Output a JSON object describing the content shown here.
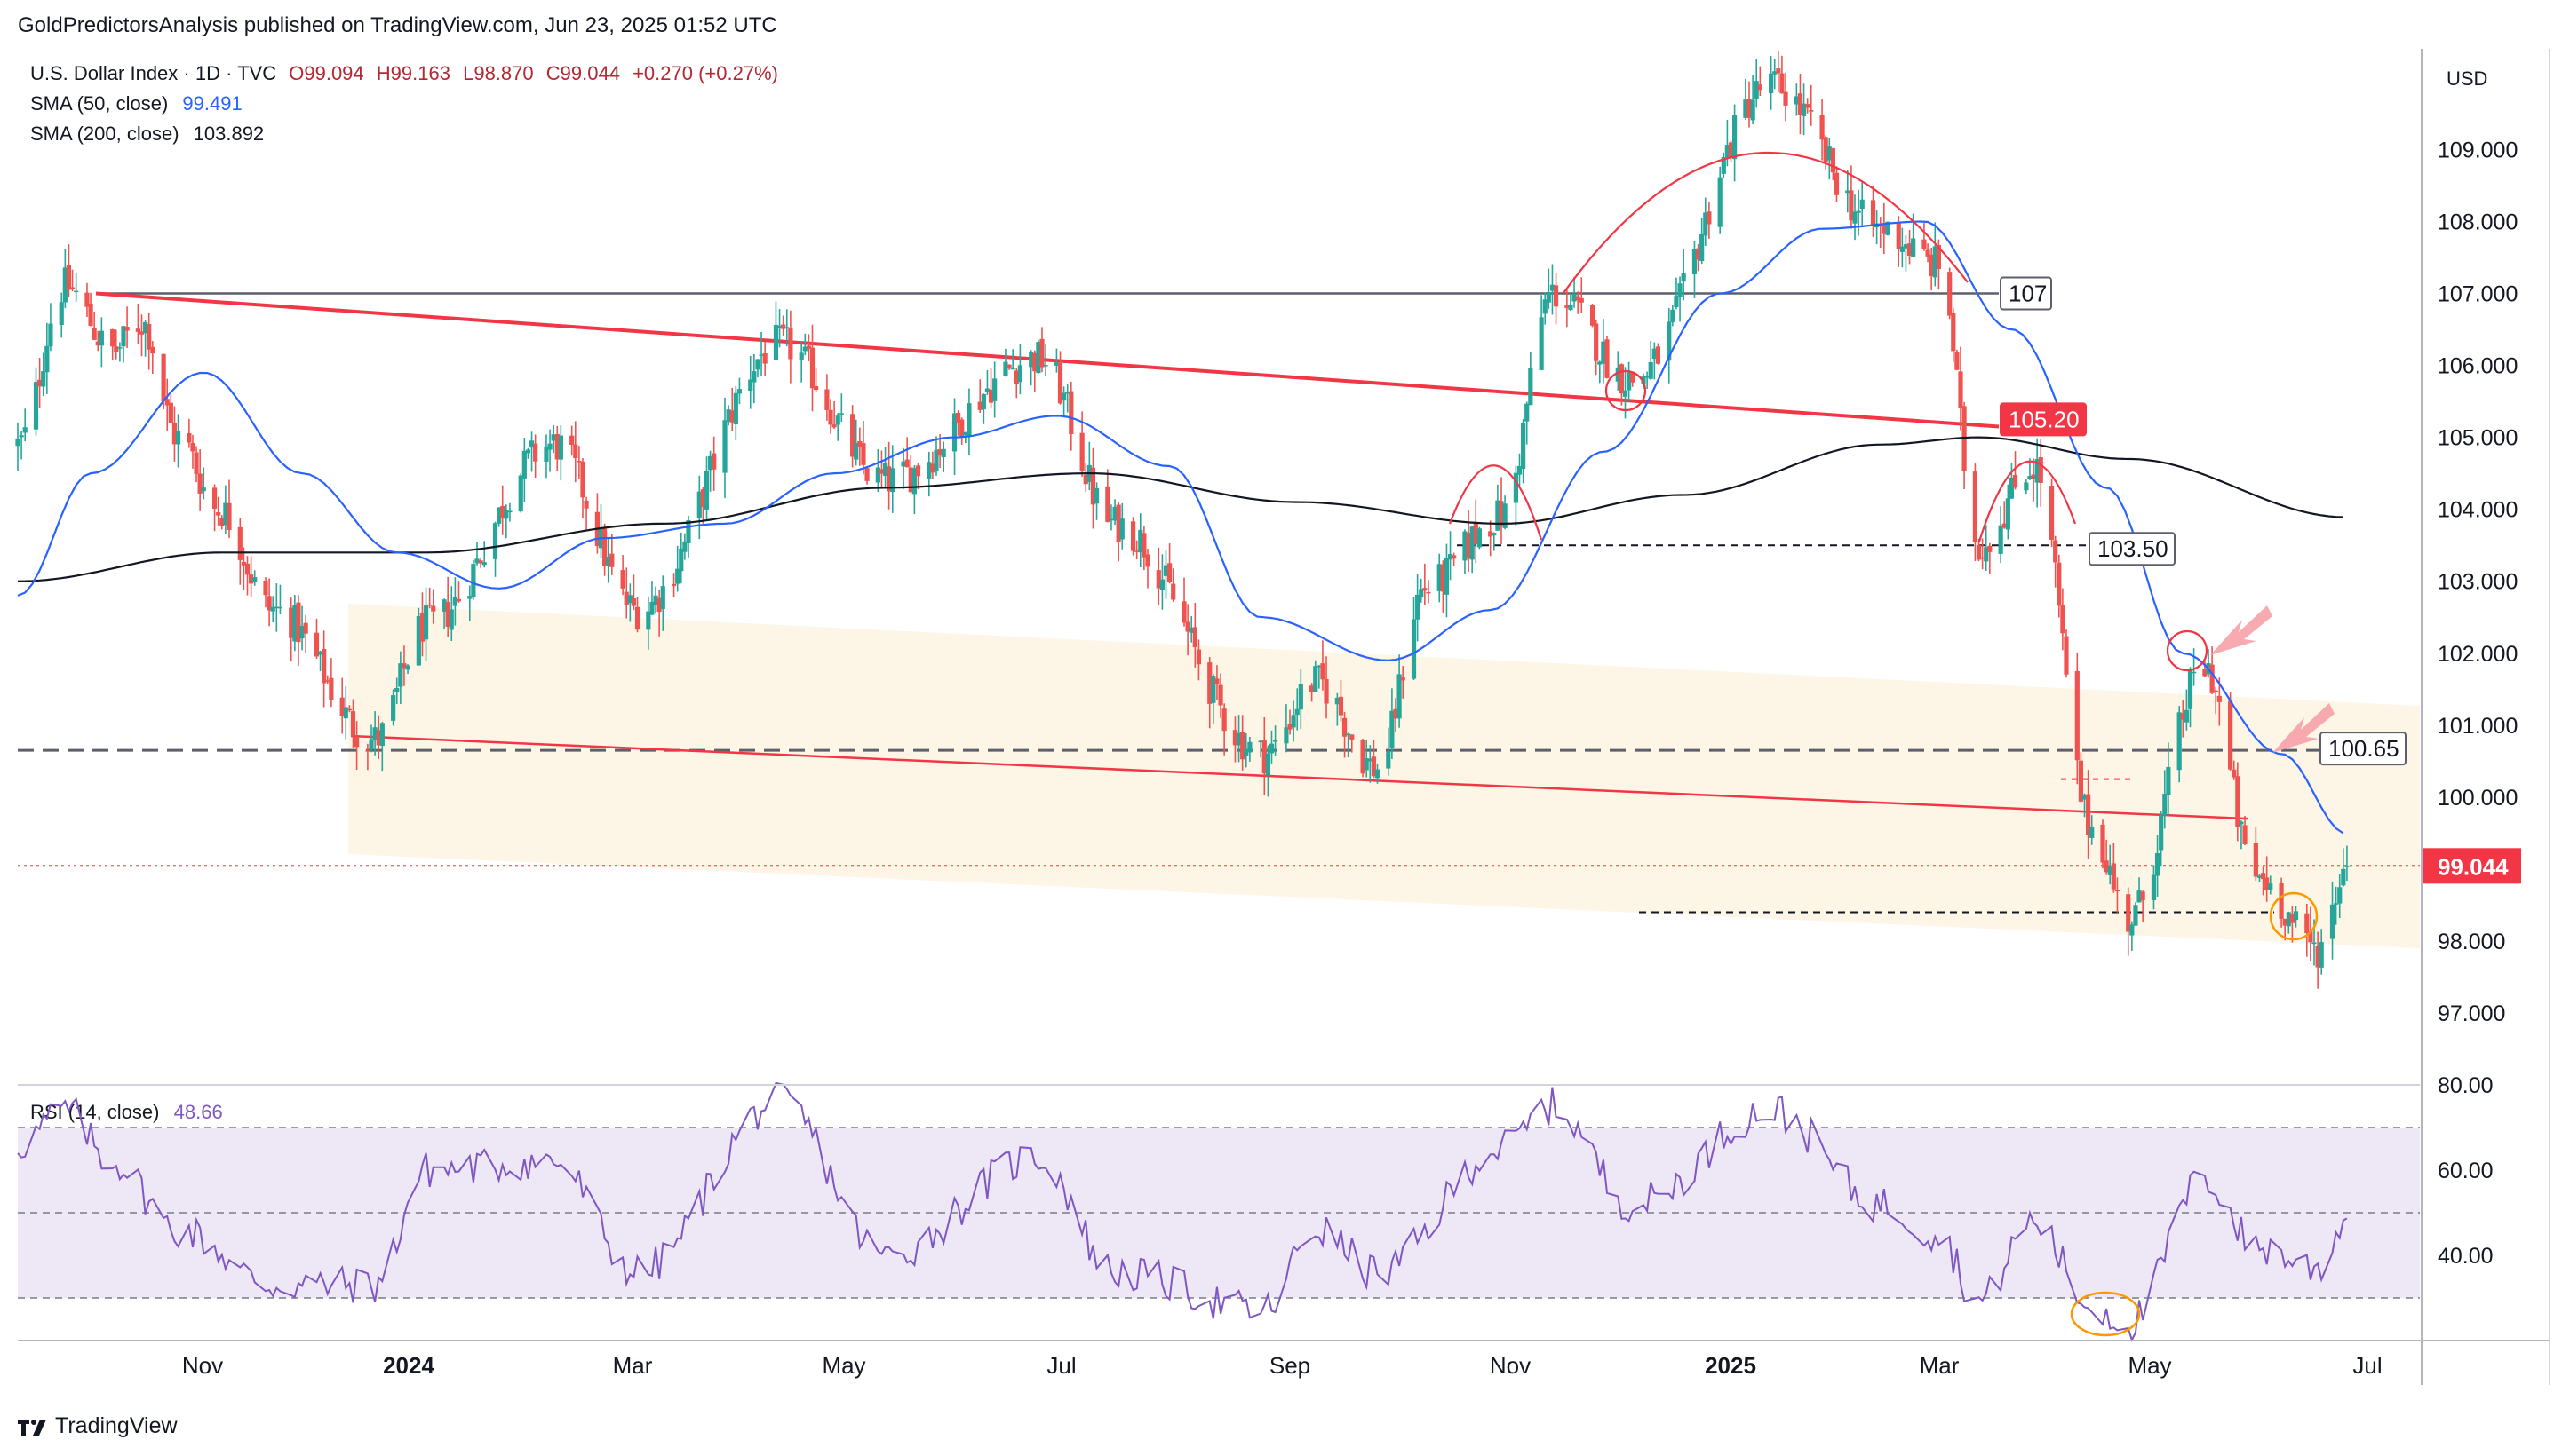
{
  "credit": "GoldPredictorsAnalysis published on TradingView.com, Jun 23, 2025 01:52 UTC",
  "brand": "TradingView",
  "currency": "USD",
  "legend": {
    "symbol": "U.S. Dollar Index · 1D · TVC",
    "open": "O99.094",
    "high": "H99.163",
    "low": "L98.870",
    "close": "C99.044",
    "change": "+0.270 (+0.27%)",
    "sma50_label": "SMA (50, close)",
    "sma50_value": "99.491",
    "sma200_label": "SMA (200, close)",
    "sma200_value": "103.892",
    "rsi_label": "RSI (14, close)",
    "rsi_value": "48.66"
  },
  "colors": {
    "up": "#26a69a",
    "down": "#ef5350",
    "sma50": "#2962ff",
    "sma200": "#131722",
    "red_line": "#f23645",
    "rsi": "#7e57c2",
    "rsi_band": "#ede7f6",
    "channel": "#fdf3e1",
    "last_price": "#f23645"
  },
  "chart_data": [
    {
      "type": "candlestick",
      "ylim": [
        96.0,
        110.4
      ],
      "price_ticks": [
        "97.000",
        "98.000",
        "99.000",
        "100.000",
        "101.000",
        "102.000",
        "103.000",
        "104.000",
        "105.000",
        "106.000",
        "107.000",
        "108.000",
        "109.000"
      ],
      "time_labels": [
        {
          "label": "Nov",
          "bold": false
        },
        {
          "label": "2024",
          "bold": true
        },
        {
          "label": "Mar",
          "bold": false
        },
        {
          "label": "May",
          "bold": false
        },
        {
          "label": "Jul",
          "bold": false
        },
        {
          "label": "Sep",
          "bold": false
        },
        {
          "label": "Nov",
          "bold": false
        },
        {
          "label": "2025",
          "bold": true
        },
        {
          "label": "Mar",
          "bold": false
        },
        {
          "label": "May",
          "bold": false
        },
        {
          "label": "Jul",
          "bold": false
        }
      ],
      "price_path": [
        [
          "2023-09-20",
          104.9
        ],
        [
          "2023-10-03",
          107.1
        ],
        [
          "2023-10-16",
          106.2
        ],
        [
          "2023-10-24",
          106.6
        ],
        [
          "2023-11-03",
          105.0
        ],
        [
          "2023-11-14",
          104.0
        ],
        [
          "2023-11-29",
          102.6
        ],
        [
          "2023-12-27",
          100.8
        ],
        [
          "2024-01-10",
          102.4
        ],
        [
          "2024-02-14",
          104.9
        ],
        [
          "2024-03-08",
          102.6
        ],
        [
          "2024-04-16",
          106.3
        ],
        [
          "2024-05-15",
          104.4
        ],
        [
          "2024-06-26",
          106.1
        ],
        [
          "2024-07-17",
          103.8
        ],
        [
          "2024-08-27",
          100.6
        ],
        [
          "2024-09-10",
          101.6
        ],
        [
          "2024-09-27",
          100.4
        ],
        [
          "2024-10-10",
          102.9
        ],
        [
          "2024-10-31",
          103.9
        ],
        [
          "2024-11-14",
          107.0
        ],
        [
          "2024-12-06",
          105.8
        ],
        [
          "2025-01-13",
          109.9
        ],
        [
          "2025-02-12",
          107.9
        ],
        [
          "2025-02-28",
          107.4
        ],
        [
          "2025-03-11",
          103.5
        ],
        [
          "2025-03-26",
          104.6
        ],
        [
          "2025-04-11",
          99.6
        ],
        [
          "2025-04-21",
          98.3
        ],
        [
          "2025-05-12",
          101.8
        ],
        [
          "2025-05-26",
          98.9
        ],
        [
          "2025-06-12",
          97.9
        ],
        [
          "2025-06-20",
          99.04
        ]
      ],
      "sma50_path": [
        [
          "2023-09-20",
          102.8
        ],
        [
          "2023-10-10",
          104.5
        ],
        [
          "2023-11-10",
          105.9
        ],
        [
          "2023-12-07",
          104.5
        ],
        [
          "2024-01-02",
          103.4
        ],
        [
          "2024-01-30",
          102.9
        ],
        [
          "2024-02-28",
          103.6
        ],
        [
          "2024-04-01",
          103.8
        ],
        [
          "2024-05-01",
          104.5
        ],
        [
          "2024-06-03",
          105.0
        ],
        [
          "2024-07-01",
          105.3
        ],
        [
          "2024-08-01",
          104.6
        ],
        [
          "2024-08-26",
          102.5
        ],
        [
          "2024-09-30",
          101.9
        ],
        [
          "2024-10-28",
          102.6
        ],
        [
          "2024-11-28",
          104.8
        ],
        [
          "2024-12-30",
          107.0
        ],
        [
          "2025-01-27",
          107.9
        ],
        [
          "2025-02-24",
          108.0
        ],
        [
          "2025-03-20",
          106.5
        ],
        [
          "2025-04-15",
          104.3
        ],
        [
          "2025-05-06",
          102.0
        ],
        [
          "2025-06-02",
          100.6
        ],
        [
          "2025-06-20",
          99.49
        ]
      ],
      "sma200_path": [
        [
          "2023-09-20",
          103.0
        ],
        [
          "2023-11-15",
          103.4
        ],
        [
          "2024-01-10",
          103.4
        ],
        [
          "2024-03-15",
          103.8
        ],
        [
          "2024-05-15",
          104.3
        ],
        [
          "2024-07-10",
          104.5
        ],
        [
          "2024-09-05",
          104.1
        ],
        [
          "2024-10-31",
          103.8
        ],
        [
          "2024-12-20",
          104.2
        ],
        [
          "2025-02-12",
          104.9
        ],
        [
          "2025-03-11",
          105.0
        ],
        [
          "2025-04-21",
          104.7
        ],
        [
          "2025-06-20",
          103.89
        ]
      ],
      "levels": [
        {
          "price": 107.0,
          "label": "107"
        },
        {
          "price": 105.2,
          "label": "105.20"
        },
        {
          "price": 103.5,
          "label": "103.50"
        },
        {
          "price": 100.65,
          "label": "100.65"
        },
        {
          "price": 99.044,
          "label": "99.044"
        }
      ],
      "support_extra": 98.4
    },
    {
      "type": "line",
      "series": [
        {
          "values_path": [
            [
              "2023-09-20",
              66
            ],
            [
              "2023-10-03",
              74
            ],
            [
              "2023-10-16",
              62
            ],
            [
              "2023-11-03",
              46
            ],
            [
              "2023-11-29",
              33
            ],
            [
              "2023-12-27",
              33
            ],
            [
              "2024-01-10",
              60
            ],
            [
              "2024-02-14",
              62
            ],
            [
              "2024-03-08",
              36
            ],
            [
              "2024-04-16",
              76
            ],
            [
              "2024-05-15",
              40
            ],
            [
              "2024-06-26",
              63
            ],
            [
              "2024-07-17",
              36
            ],
            [
              "2024-08-27",
              27
            ],
            [
              "2024-09-10",
              46
            ],
            [
              "2024-09-27",
              36
            ],
            [
              "2024-10-31",
              65
            ],
            [
              "2024-11-14",
              75
            ],
            [
              "2024-12-06",
              52
            ],
            [
              "2025-01-13",
              74
            ],
            [
              "2025-02-12",
              52
            ],
            [
              "2025-02-28",
              45
            ],
            [
              "2025-03-11",
              29
            ],
            [
              "2025-03-26",
              48
            ],
            [
              "2025-04-11",
              28
            ],
            [
              "2025-04-21",
              24
            ],
            [
              "2025-05-12",
              58
            ],
            [
              "2025-05-26",
              42
            ],
            [
              "2025-06-12",
              37
            ],
            [
              "2025-06-20",
              48.66
            ]
          ]
        }
      ],
      "ylim": [
        20,
        80
      ],
      "ticks": [
        "80.00",
        "60.00",
        "40.00"
      ],
      "bands": [
        30,
        50,
        70
      ]
    }
  ]
}
